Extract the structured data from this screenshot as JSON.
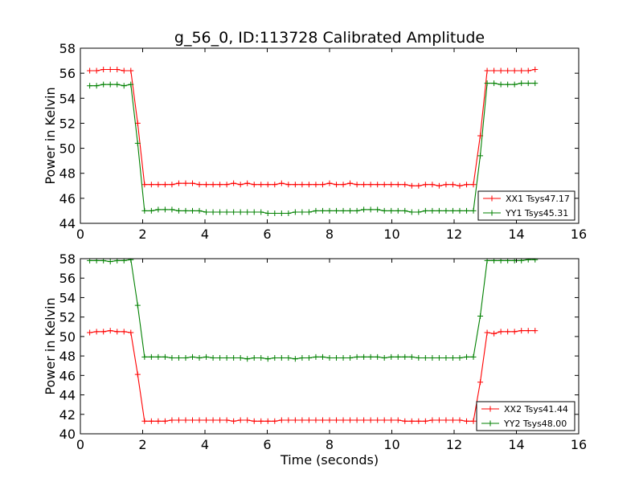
{
  "chart_data": [
    {
      "type": "line",
      "title": "g_56_0, ID:113728 Calibrated Amplitude",
      "xlabel": "",
      "ylabel": "Power in Kelvin",
      "xlim": [
        0,
        16
      ],
      "ylim": [
        44,
        58
      ],
      "xticks": [
        "0",
        "2",
        "4",
        "6",
        "8",
        "10",
        "12",
        "14",
        "16"
      ],
      "yticks": [
        "44",
        "46",
        "48",
        "50",
        "52",
        "54",
        "56",
        "58"
      ],
      "legend_position": "lower-right",
      "x": [
        0.3,
        0.52,
        0.74,
        0.96,
        1.18,
        1.4,
        1.62,
        1.84,
        2.06,
        2.28,
        2.5,
        2.72,
        2.94,
        3.16,
        3.38,
        3.6,
        3.82,
        4.04,
        4.26,
        4.48,
        4.7,
        4.92,
        5.14,
        5.36,
        5.58,
        5.8,
        6.02,
        6.24,
        6.46,
        6.68,
        6.9,
        7.12,
        7.34,
        7.56,
        7.78,
        8.0,
        8.22,
        8.44,
        8.66,
        8.88,
        9.1,
        9.32,
        9.54,
        9.76,
        9.98,
        10.2,
        10.42,
        10.64,
        10.86,
        11.08,
        11.3,
        11.52,
        11.74,
        11.96,
        12.18,
        12.4,
        12.62,
        12.84,
        13.06,
        13.28,
        13.5,
        13.72,
        13.94,
        14.16,
        14.38,
        14.6
      ],
      "series": [
        {
          "name": "XX1 Tsys47.17",
          "color": "#ff0000",
          "values": [
            56.2,
            56.2,
            56.3,
            56.3,
            56.3,
            56.2,
            56.2,
            52.0,
            47.1,
            47.1,
            47.1,
            47.1,
            47.1,
            47.2,
            47.2,
            47.2,
            47.1,
            47.1,
            47.1,
            47.1,
            47.1,
            47.2,
            47.1,
            47.2,
            47.1,
            47.1,
            47.1,
            47.1,
            47.2,
            47.1,
            47.1,
            47.1,
            47.1,
            47.1,
            47.1,
            47.2,
            47.1,
            47.1,
            47.2,
            47.1,
            47.1,
            47.1,
            47.1,
            47.1,
            47.1,
            47.1,
            47.1,
            47.0,
            47.0,
            47.1,
            47.1,
            47.0,
            47.1,
            47.1,
            47.0,
            47.1,
            47.1,
            51.0,
            56.2,
            56.2,
            56.2,
            56.2,
            56.2,
            56.2,
            56.2,
            56.3
          ]
        },
        {
          "name": "YY1 Tsys45.31",
          "color": "#008000",
          "values": [
            55.0,
            55.0,
            55.1,
            55.1,
            55.1,
            55.0,
            55.1,
            50.4,
            45.0,
            45.0,
            45.1,
            45.1,
            45.1,
            45.0,
            45.0,
            45.0,
            45.0,
            44.9,
            44.9,
            44.9,
            44.9,
            44.9,
            44.9,
            44.9,
            44.9,
            44.9,
            44.8,
            44.8,
            44.8,
            44.8,
            44.9,
            44.9,
            44.9,
            45.0,
            45.0,
            45.0,
            45.0,
            45.0,
            45.0,
            45.0,
            45.1,
            45.1,
            45.1,
            45.0,
            45.0,
            45.0,
            45.0,
            44.9,
            44.9,
            45.0,
            45.0,
            45.0,
            45.0,
            45.0,
            45.0,
            45.0,
            45.0,
            49.4,
            55.2,
            55.2,
            55.1,
            55.1,
            55.1,
            55.2,
            55.2,
            55.2
          ]
        }
      ]
    },
    {
      "type": "line",
      "title": "",
      "xlabel": "Time (seconds)",
      "ylabel": "Power in Kelvin",
      "xlim": [
        0,
        16
      ],
      "ylim": [
        40,
        58
      ],
      "xticks": [
        "0",
        "2",
        "4",
        "6",
        "8",
        "10",
        "12",
        "14",
        "16"
      ],
      "yticks": [
        "40",
        "42",
        "44",
        "46",
        "48",
        "50",
        "52",
        "54",
        "56",
        "58"
      ],
      "legend_position": "lower-right",
      "x": [
        0.3,
        0.52,
        0.74,
        0.96,
        1.18,
        1.4,
        1.62,
        1.84,
        2.06,
        2.28,
        2.5,
        2.72,
        2.94,
        3.16,
        3.38,
        3.6,
        3.82,
        4.04,
        4.26,
        4.48,
        4.7,
        4.92,
        5.14,
        5.36,
        5.58,
        5.8,
        6.02,
        6.24,
        6.46,
        6.68,
        6.9,
        7.12,
        7.34,
        7.56,
        7.78,
        8.0,
        8.22,
        8.44,
        8.66,
        8.88,
        9.1,
        9.32,
        9.54,
        9.76,
        9.98,
        10.2,
        10.42,
        10.64,
        10.86,
        11.08,
        11.3,
        11.52,
        11.74,
        11.96,
        12.18,
        12.4,
        12.62,
        12.84,
        13.06,
        13.28,
        13.5,
        13.72,
        13.94,
        14.16,
        14.38,
        14.6
      ],
      "series": [
        {
          "name": "XX2 Tsys41.44",
          "color": "#ff0000",
          "values": [
            50.4,
            50.5,
            50.5,
            50.6,
            50.5,
            50.5,
            50.4,
            46.1,
            41.3,
            41.3,
            41.3,
            41.3,
            41.4,
            41.4,
            41.4,
            41.4,
            41.4,
            41.4,
            41.4,
            41.4,
            41.4,
            41.3,
            41.4,
            41.4,
            41.3,
            41.3,
            41.3,
            41.3,
            41.4,
            41.4,
            41.4,
            41.4,
            41.4,
            41.4,
            41.4,
            41.4,
            41.4,
            41.4,
            41.4,
            41.4,
            41.4,
            41.4,
            41.4,
            41.4,
            41.4,
            41.4,
            41.3,
            41.3,
            41.3,
            41.3,
            41.4,
            41.4,
            41.4,
            41.4,
            41.4,
            41.3,
            41.3,
            45.3,
            50.4,
            50.3,
            50.5,
            50.5,
            50.5,
            50.6,
            50.6,
            50.6
          ]
        },
        {
          "name": "YY2 Tsys48.00",
          "color": "#008000",
          "values": [
            57.8,
            57.8,
            57.8,
            57.7,
            57.8,
            57.8,
            57.9,
            53.2,
            47.9,
            47.9,
            47.9,
            47.9,
            47.8,
            47.8,
            47.8,
            47.9,
            47.8,
            47.9,
            47.8,
            47.8,
            47.8,
            47.8,
            47.8,
            47.7,
            47.8,
            47.8,
            47.7,
            47.8,
            47.8,
            47.8,
            47.7,
            47.8,
            47.8,
            47.9,
            47.9,
            47.8,
            47.8,
            47.8,
            47.8,
            47.9,
            47.9,
            47.9,
            47.9,
            47.8,
            47.9,
            47.9,
            47.9,
            47.9,
            47.8,
            47.8,
            47.8,
            47.8,
            47.8,
            47.8,
            47.8,
            47.9,
            47.9,
            52.1,
            57.8,
            57.8,
            57.8,
            57.8,
            57.8,
            57.8,
            57.9,
            57.9
          ]
        }
      ]
    }
  ]
}
